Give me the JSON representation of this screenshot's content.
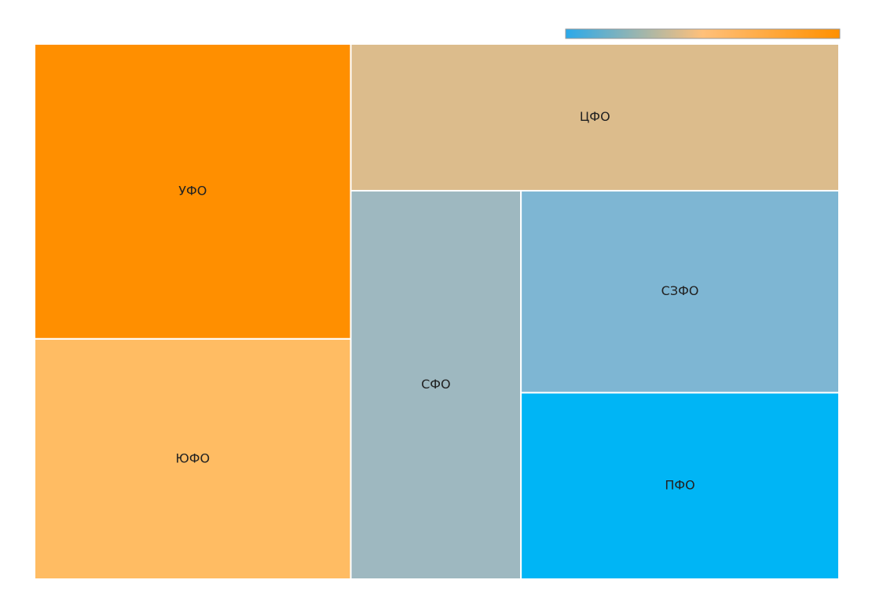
{
  "chart_data": {
    "type": "treemap",
    "categories": [
      "УФО",
      "ЮФО",
      "ЦФО",
      "СФО",
      "СЗФО",
      "ПФО"
    ],
    "values": [
      151,
      123,
      116,
      107,
      104,
      96
    ],
    "colors": [
      "#ff8f00",
      "#ffbc63",
      "#dcbc8c",
      "#9eb8c0",
      "#7eb6d3",
      "#00b5f5"
    ],
    "colorscale": [
      "#2aa9ea",
      "#ffc07a",
      "#ff9000"
    ]
  }
}
